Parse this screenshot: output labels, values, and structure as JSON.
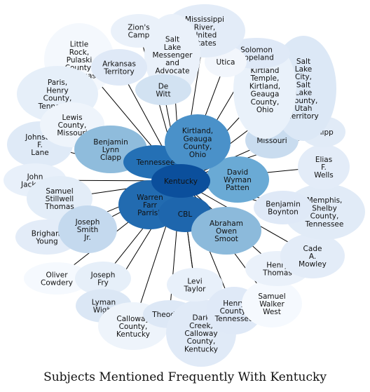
{
  "title": "Subjects Mentioned Frequently With Kentucky",
  "center": {
    "label": "Kentucky",
    "color": "#0b4f9c"
  },
  "nodes": [
    {
      "id": "little-rock",
      "label": "Little Rock, Pulaski County, Arkansas",
      "color": "#f4f8fd"
    },
    {
      "id": "paris-henry",
      "label": "Paris, Henry County, Tennessee",
      "color": "#e6eff9"
    },
    {
      "id": "johnson-lane",
      "label": "Johnson F. Lane",
      "color": "#dfeaf7"
    },
    {
      "id": "john-jackson",
      "label": "John Jackson",
      "color": "#e8f0fa"
    },
    {
      "id": "stillwell-thomas",
      "label": "Samuel Stillwell Thomas",
      "color": "#e3edf8"
    },
    {
      "id": "brigham-young",
      "label": "Brigham Young",
      "color": "#e3ecf8"
    },
    {
      "id": "joseph-smith",
      "label": "Joseph Smith Jr.",
      "color": "#c4d9ee"
    },
    {
      "id": "oliver-cowdery",
      "label": "Oliver Cowdery",
      "color": "#f5f9fe"
    },
    {
      "id": "joseph-fry",
      "label": "Joseph Fry",
      "color": "#e6eff9"
    },
    {
      "id": "lyman-wight",
      "label": "Lyman Wight",
      "color": "#dbe7f5"
    },
    {
      "id": "calloway-county",
      "label": "Calloway County, Kentucky",
      "color": "#eef4fb"
    },
    {
      "id": "theodore",
      "label": "Theodore",
      "color": "#dde8f6"
    },
    {
      "id": "dark-creek",
      "label": "Dark Creek, Calloway County, Kentucky",
      "color": "#e0eaf7"
    },
    {
      "id": "levi-taylor",
      "label": "Levi Taylor",
      "color": "#e8f0fa"
    },
    {
      "id": "henry-county",
      "label": "Henry County, Tennessee",
      "color": "#dfe9f7"
    },
    {
      "id": "samuel-west",
      "label": "Samuel Walker West",
      "color": "#f5f9fe"
    },
    {
      "id": "henry-thomas",
      "label": "Henry Thomas",
      "color": "#eaf1fa"
    },
    {
      "id": "cade-mowley",
      "label": "Cade A. Mowley",
      "color": "#e3ecf8"
    },
    {
      "id": "memphis",
      "label": "Memphis, Shelby County, Tennessee",
      "color": "#e1ebf7"
    },
    {
      "id": "benjamin-boynton",
      "label": "Benjamin Boynton",
      "color": "#dfe9f7"
    },
    {
      "id": "elias-wells",
      "label": "Elias F. Wells",
      "color": "#e3ecf8"
    },
    {
      "id": "missouri",
      "label": "Missouri",
      "color": "#c9dcef"
    },
    {
      "id": "shipp",
      "label": "Shipp",
      "color": "#e1ebf7"
    },
    {
      "id": "salt-lake-city",
      "label": "Salt Lake City, Salt Lake County, Utah Territory",
      "color": "#dce8f6"
    },
    {
      "id": "kirtland-temple",
      "label": "Kirtland Temple, Kirtland, Geauga County, Ohio",
      "color": "#e9f1fa"
    },
    {
      "id": "solomon-copeland",
      "label": "Solomon Copeland",
      "color": "#dfe9f7"
    },
    {
      "id": "utica",
      "label": "Utica",
      "color": "#f2f6fc"
    },
    {
      "id": "mississippi-river",
      "label": "Mississippi River, United States",
      "color": "#e3ecf8"
    },
    {
      "id": "salt-lake-messenger",
      "label": "Salt Lake Messenger and Advocate",
      "color": "#eaf1fa"
    },
    {
      "id": "zions-camp",
      "label": "Zion's Camp",
      "color": "#eaf1fa"
    },
    {
      "id": "arkansas-territory",
      "label": "Arkansas Territory",
      "color": "#dfe9f7"
    },
    {
      "id": "lewis-county",
      "label": "Lewis County, Missouri",
      "color": "#eef4fb"
    },
    {
      "id": "benjamin-clapp",
      "label": "Benjamin Lynn Clapp",
      "color": "#8fbcdc"
    },
    {
      "id": "tennessee",
      "label": "Tennessee",
      "color": "#2470b5"
    },
    {
      "id": "warren-parrish",
      "label": "Warren Farr Parrish",
      "color": "#226bb0"
    },
    {
      "id": "cbl",
      "label": "CBL",
      "color": "#1e66ad"
    },
    {
      "id": "abraham-smoot",
      "label": "Abraham Owen Smoot",
      "color": "#8cbadb"
    },
    {
      "id": "david-patten",
      "label": "David Wyman Patten",
      "color": "#6aaad5"
    },
    {
      "id": "kirtland-ohio",
      "label": "Kirtland, Geauga County, Ohio",
      "color": "#4a91c9"
    },
    {
      "id": "dewitt",
      "label": "De Witt",
      "color": "#d2e2f2"
    }
  ]
}
